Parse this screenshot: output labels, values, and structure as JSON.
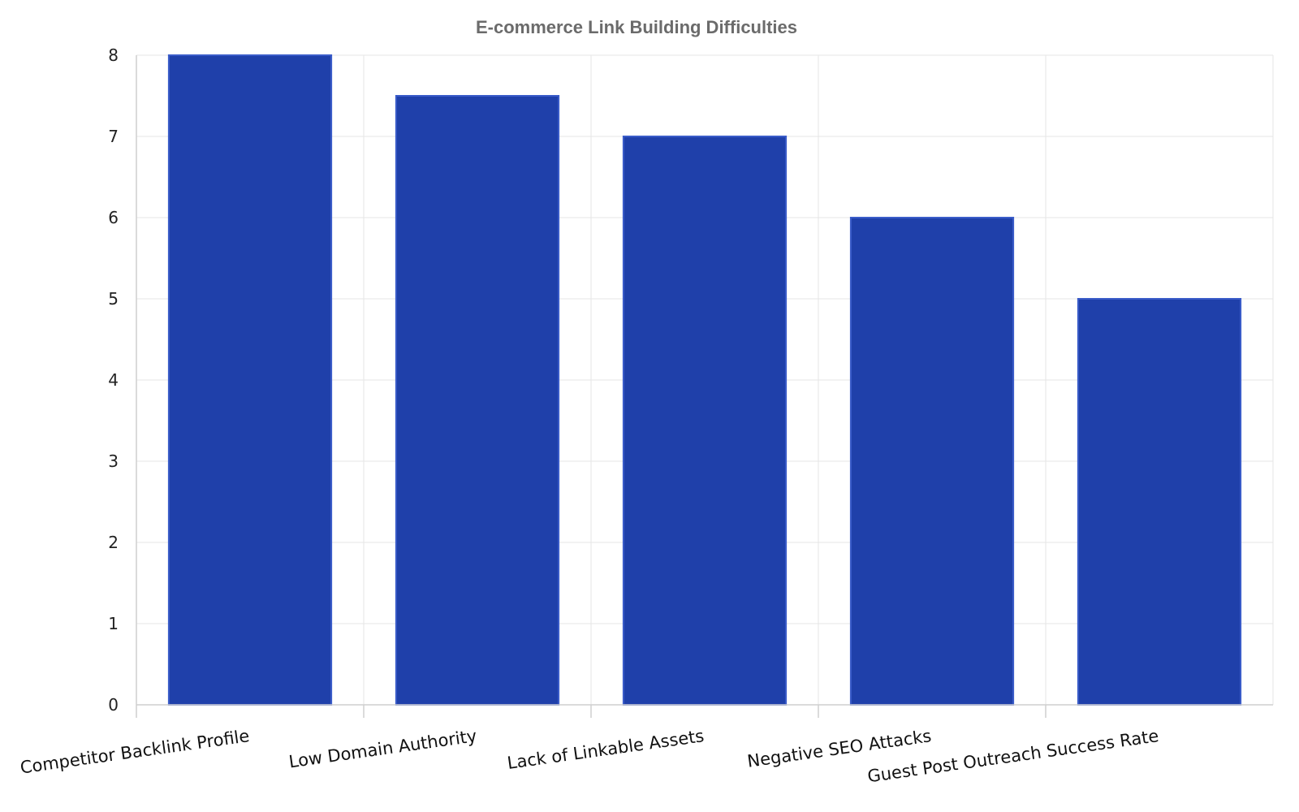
{
  "chart_data": {
    "type": "bar",
    "title": "E-commerce Link Building Difficulties",
    "xlabel": "",
    "ylabel": "",
    "categories": [
      "Competitor Backlink Profile",
      "Low Domain Authority",
      "Lack of Linkable Assets",
      "Negative SEO Attacks",
      "Guest Post Outreach Success Rate"
    ],
    "values": [
      8,
      7.5,
      7,
      6,
      5
    ],
    "ylim": [
      0,
      8
    ],
    "yticks": [
      0,
      1,
      2,
      3,
      4,
      5,
      6,
      7,
      8
    ],
    "grid": true,
    "legend": "none",
    "colors": {
      "bar_fill": "#1f40aa",
      "bar_outline": "#3a5cc9",
      "title": "#6b6b6b"
    }
  }
}
